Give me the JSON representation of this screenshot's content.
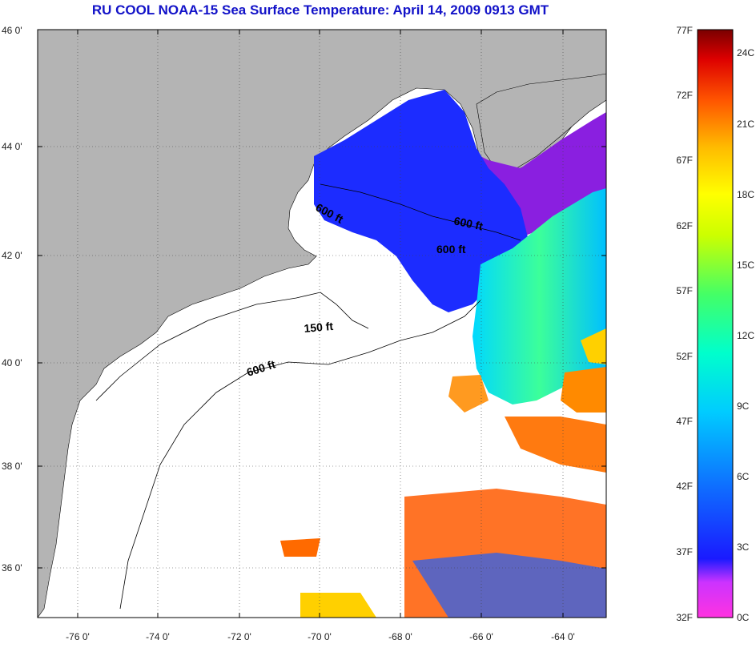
{
  "title": "RU COOL  NOAA-15  Sea Surface Temperature:  April 14, 2009 0913 GMT",
  "map": {
    "lat_labels": [
      "46 0'",
      "44 0'",
      "42 0'",
      "40 0'",
      "38 0'",
      "36 0'"
    ],
    "lon_labels": [
      "-76 0'",
      "-74 0'",
      "-72 0'",
      "-70 0'",
      "-68 0'",
      "-66 0'",
      "-64 0'"
    ],
    "lat_range": [
      35,
      46
    ],
    "lon_range": [
      -77,
      -63
    ],
    "contour_labels": [
      "600 ft",
      "600 ft",
      "600 ft",
      "150 ft",
      "600 ft"
    ]
  },
  "colorbar": {
    "fahrenheit": [
      "77F",
      "72F",
      "67F",
      "62F",
      "57F",
      "52F",
      "47F",
      "42F",
      "37F",
      "32F"
    ],
    "celsius": [
      "24C",
      "21C",
      "18C",
      "15C",
      "12C",
      "9C",
      "6C",
      "3C",
      "0C"
    ],
    "colors": [
      "#ff33e0",
      "#cc33ff",
      "#7a22ff",
      "#1a1aff",
      "#0f6cff",
      "#00ccff",
      "#00ffcc",
      "#44ff66",
      "#ccff00",
      "#ffff00",
      "#ffcc00",
      "#ff8800",
      "#ff3300",
      "#dd0000",
      "#8a0000"
    ]
  }
}
